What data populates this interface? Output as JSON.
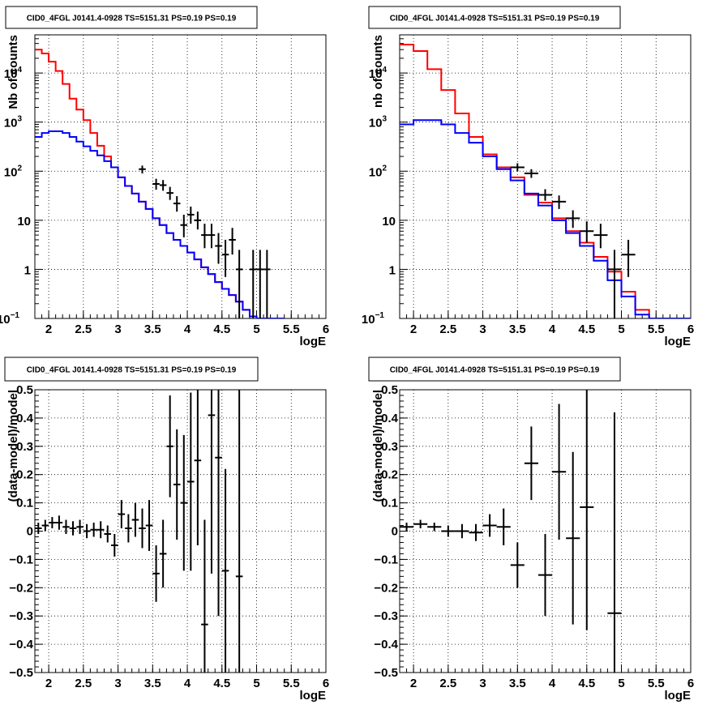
{
  "chart_data": [
    {
      "type": "line",
      "title": "CID0_4FGL J0141.4-0928 TS=5151.31 PS=0.19 PS=0.19",
      "xlabel": "logE",
      "ylabel": "Nb of counts",
      "xlim": [
        1.8,
        6.0
      ],
      "ylim": [
        0.1,
        60000
      ],
      "y_scale": "log",
      "grid": true,
      "x_ticks": [
        "2",
        "2.5",
        "3",
        "3.5",
        "4",
        "4.5",
        "5",
        "5.5",
        "6"
      ],
      "y_ticks": [
        {
          "value": 0.1,
          "base": "10",
          "exp": "−1"
        },
        {
          "value": 1,
          "base": "1",
          "exp": ""
        },
        {
          "value": 10,
          "base": "10",
          "exp": ""
        },
        {
          "value": 100,
          "base": "10",
          "exp": "2"
        },
        {
          "value": 1000,
          "base": "10",
          "exp": "3"
        },
        {
          "value": 10000,
          "base": "10",
          "exp": "4"
        }
      ],
      "bin_width": 0.1,
      "series": [
        {
          "color": "#ff0000",
          "style": "step",
          "x_start": 1.8,
          "values": [
            30000,
            25000,
            17000,
            11000,
            6000,
            3000,
            1800,
            1100,
            600,
            330,
            200,
            120,
            75,
            50,
            35,
            24,
            17,
            11,
            8,
            5.5,
            4,
            3,
            2.2,
            1.6,
            1.1,
            0.8,
            0.55,
            0.4,
            0.3,
            0.22,
            0.15,
            0.11,
            0.1,
            0.1,
            0.1,
            0.1
          ]
        },
        {
          "color": "#0000ff",
          "style": "step",
          "x_start": 1.8,
          "values": [
            500,
            600,
            650,
            650,
            600,
            500,
            400,
            320,
            260,
            210,
            160,
            120,
            75,
            50,
            35,
            24,
            17,
            11,
            8,
            5.5,
            4,
            3,
            2.2,
            1.6,
            1.1,
            0.8,
            0.55,
            0.4,
            0.3,
            0.22,
            0.15,
            0.11,
            0.1,
            0.1,
            0.1,
            0.1
          ]
        },
        {
          "color": "#000000",
          "style": "errorbar",
          "half_width": 0.05,
          "points": [
            {
              "x": 3.35,
              "y": 110,
              "lo": 90,
              "hi": 130
            },
            {
              "x": 3.55,
              "y": 55,
              "lo": 42,
              "hi": 70
            },
            {
              "x": 3.65,
              "y": 52,
              "lo": 40,
              "hi": 66
            },
            {
              "x": 3.75,
              "y": 36,
              "lo": 26,
              "hi": 48
            },
            {
              "x": 3.85,
              "y": 22,
              "lo": 15,
              "hi": 31
            },
            {
              "x": 3.95,
              "y": 8,
              "lo": 4.5,
              "hi": 13
            },
            {
              "x": 4.05,
              "y": 13,
              "lo": 8.5,
              "hi": 19
            },
            {
              "x": 4.15,
              "y": 10,
              "lo": 6.5,
              "hi": 15
            },
            {
              "x": 4.25,
              "y": 5,
              "lo": 2.7,
              "hi": 8.5
            },
            {
              "x": 4.35,
              "y": 5,
              "lo": 2.7,
              "hi": 8.5
            },
            {
              "x": 4.45,
              "y": 3,
              "lo": 1.3,
              "hi": 5.5
            },
            {
              "x": 4.55,
              "y": 2,
              "lo": 0.7,
              "hi": 4
            },
            {
              "x": 4.65,
              "y": 4,
              "lo": 2,
              "hi": 7
            },
            {
              "x": 4.75,
              "y": 1,
              "lo": 0.1,
              "hi": 2.5
            },
            {
              "x": 4.95,
              "y": 1,
              "lo": 0.1,
              "hi": 2.5
            },
            {
              "x": 5.05,
              "y": 1,
              "lo": 0.1,
              "hi": 2.5
            },
            {
              "x": 5.15,
              "y": 1,
              "lo": 0.1,
              "hi": 2.5
            }
          ]
        }
      ]
    },
    {
      "type": "line",
      "title": "CID0_4FGL J0141.4-0928 TS=5151.31 PS=0.19 PS=0.19",
      "xlabel": "logE",
      "ylabel": "nb of counts",
      "xlim": [
        1.8,
        6.0
      ],
      "ylim": [
        0.1,
        60000
      ],
      "y_scale": "log",
      "grid": true,
      "x_ticks": [
        "2",
        "2.5",
        "3",
        "3.5",
        "4",
        "4.5",
        "5",
        "5.5",
        "6"
      ],
      "y_ticks": [
        {
          "value": 0.1,
          "base": "10",
          "exp": "−1"
        },
        {
          "value": 1,
          "base": "1",
          "exp": ""
        },
        {
          "value": 10,
          "base": "10",
          "exp": ""
        },
        {
          "value": 100,
          "base": "10",
          "exp": "2"
        },
        {
          "value": 1000,
          "base": "10",
          "exp": "3"
        },
        {
          "value": 10000,
          "base": "10",
          "exp": "4"
        }
      ],
      "bin_width": 0.2,
      "series": [
        {
          "color": "#ff0000",
          "style": "step",
          "x_start": 1.8,
          "values": [
            38000,
            28000,
            12000,
            4500,
            1500,
            500,
            220,
            120,
            75,
            33,
            23,
            11,
            6,
            3.5,
            1.8,
            0.9,
            0.35,
            0.15,
            0.1,
            0.1,
            0.1
          ]
        },
        {
          "color": "#0000ff",
          "style": "step",
          "x_start": 1.8,
          "values": [
            900,
            1100,
            1100,
            900,
            600,
            380,
            200,
            110,
            65,
            35,
            20,
            10,
            5.5,
            3,
            1.5,
            0.6,
            0.28,
            0.12,
            0.1,
            0.1,
            0.1
          ]
        },
        {
          "color": "#000000",
          "style": "errorbar",
          "half_width": 0.1,
          "points": [
            {
              "x": 3.5,
              "y": 120,
              "lo": 100,
              "hi": 145
            },
            {
              "x": 3.7,
              "y": 90,
              "lo": 73,
              "hi": 110
            },
            {
              "x": 3.9,
              "y": 33,
              "lo": 25,
              "hi": 43
            },
            {
              "x": 4.1,
              "y": 24,
              "lo": 17,
              "hi": 32
            },
            {
              "x": 4.3,
              "y": 11,
              "lo": 7,
              "hi": 16
            },
            {
              "x": 4.5,
              "y": 6,
              "lo": 3.5,
              "hi": 9.5
            },
            {
              "x": 4.7,
              "y": 5,
              "lo": 2.7,
              "hi": 8.5
            },
            {
              "x": 4.9,
              "y": 1,
              "lo": 0.1,
              "hi": 2.5
            },
            {
              "x": 5.1,
              "y": 2,
              "lo": 0.7,
              "hi": 4
            }
          ]
        }
      ]
    },
    {
      "type": "scatter",
      "title": "CID0_4FGL J0141.4-0928 TS=5151.31 PS=0.19 PS=0.19",
      "xlabel": "logE",
      "ylabel": "(data-model)/model",
      "xlim": [
        1.8,
        6.0
      ],
      "ylim": [
        -0.5,
        0.5
      ],
      "grid": true,
      "x_ticks": [
        "2",
        "2.5",
        "3",
        "3.5",
        "4",
        "4.5",
        "5",
        "5.5",
        "6"
      ],
      "y_ticks": [
        "−0.5",
        "−0.4",
        "−0.3",
        "−0.2",
        "−0.1",
        "0",
        "0.1",
        "0.2",
        "0.3",
        "0.4",
        "0.5"
      ],
      "series": [
        {
          "color": "#000000",
          "style": "errorbar",
          "half_width": 0.05,
          "points": [
            {
              "x": 1.85,
              "y": 0.01,
              "lo": -0.01,
              "hi": 0.03
            },
            {
              "x": 1.95,
              "y": 0.02,
              "lo": 0.0,
              "hi": 0.04
            },
            {
              "x": 2.05,
              "y": 0.03,
              "lo": 0.01,
              "hi": 0.05
            },
            {
              "x": 2.15,
              "y": 0.03,
              "lo": 0.005,
              "hi": 0.055
            },
            {
              "x": 2.25,
              "y": 0.015,
              "lo": -0.01,
              "hi": 0.04
            },
            {
              "x": 2.35,
              "y": 0.01,
              "lo": -0.015,
              "hi": 0.035
            },
            {
              "x": 2.45,
              "y": 0.015,
              "lo": -0.01,
              "hi": 0.04
            },
            {
              "x": 2.55,
              "y": 0.0,
              "lo": -0.025,
              "hi": 0.025
            },
            {
              "x": 2.65,
              "y": 0.005,
              "lo": -0.02,
              "hi": 0.03
            },
            {
              "x": 2.75,
              "y": 0.005,
              "lo": -0.025,
              "hi": 0.035
            },
            {
              "x": 2.85,
              "y": -0.01,
              "lo": -0.04,
              "hi": 0.02
            },
            {
              "x": 2.95,
              "y": -0.05,
              "lo": -0.09,
              "hi": -0.01
            },
            {
              "x": 3.05,
              "y": 0.06,
              "lo": 0.01,
              "hi": 0.11
            },
            {
              "x": 3.15,
              "y": 0.01,
              "lo": -0.04,
              "hi": 0.06
            },
            {
              "x": 3.25,
              "y": 0.04,
              "lo": -0.02,
              "hi": 0.1
            },
            {
              "x": 3.35,
              "y": 0.01,
              "lo": -0.06,
              "hi": 0.08
            },
            {
              "x": 3.45,
              "y": 0.02,
              "lo": -0.07,
              "hi": 0.11
            },
            {
              "x": 3.55,
              "y": -0.15,
              "lo": -0.25,
              "hi": -0.05
            },
            {
              "x": 3.65,
              "y": -0.08,
              "lo": -0.2,
              "hi": 0.04
            },
            {
              "x": 3.75,
              "y": 0.3,
              "lo": 0.12,
              "hi": 0.48
            },
            {
              "x": 3.85,
              "y": 0.165,
              "lo": -0.03,
              "hi": 0.36
            },
            {
              "x": 3.95,
              "y": 0.1,
              "lo": -0.14,
              "hi": 0.34
            },
            {
              "x": 4.05,
              "y": 0.175,
              "lo": -0.14,
              "hi": 0.49
            },
            {
              "x": 4.15,
              "y": 0.25,
              "lo": -0.05,
              "hi": 0.55
            },
            {
              "x": 4.25,
              "y": -0.33,
              "lo": -0.7,
              "hi": 0.04
            },
            {
              "x": 4.35,
              "y": 0.41,
              "lo": -0.15,
              "hi": 0.97
            },
            {
              "x": 4.45,
              "y": 0.26,
              "lo": -0.3,
              "hi": 0.82
            },
            {
              "x": 4.55,
              "y": -0.14,
              "lo": -0.5,
              "hi": 0.22
            },
            {
              "x": 4.75,
              "y": -0.16,
              "lo": -0.6,
              "hi": 0.6
            }
          ]
        }
      ]
    },
    {
      "type": "scatter",
      "title": "CID0_4FGL J0141.4-0928 TS=5151.31 PS=0.19 PS=0.19",
      "xlabel": "logE",
      "ylabel": "(data-model)/model",
      "xlim": [
        1.8,
        6.0
      ],
      "ylim": [
        -0.5,
        0.5
      ],
      "grid": true,
      "x_ticks": [
        "2",
        "2.5",
        "3",
        "3.5",
        "4",
        "4.5",
        "5",
        "5.5",
        "6"
      ],
      "y_ticks": [
        "−0.5",
        "−0.4",
        "−0.3",
        "−0.2",
        "−0.1",
        "0",
        "0.1",
        "0.2",
        "0.3",
        "0.4",
        "0.5"
      ],
      "series": [
        {
          "color": "#000000",
          "style": "errorbar",
          "half_width": 0.1,
          "points": [
            {
              "x": 1.9,
              "y": 0.015,
              "lo": 0.0,
              "hi": 0.03
            },
            {
              "x": 2.1,
              "y": 0.025,
              "lo": 0.01,
              "hi": 0.04
            },
            {
              "x": 2.3,
              "y": 0.015,
              "lo": 0.0,
              "hi": 0.03
            },
            {
              "x": 2.5,
              "y": 0.0,
              "lo": -0.02,
              "hi": 0.02
            },
            {
              "x": 2.7,
              "y": 0.0,
              "lo": -0.025,
              "hi": 0.025
            },
            {
              "x": 2.9,
              "y": -0.005,
              "lo": -0.035,
              "hi": 0.025
            },
            {
              "x": 3.1,
              "y": 0.02,
              "lo": -0.02,
              "hi": 0.06
            },
            {
              "x": 3.3,
              "y": 0.015,
              "lo": -0.05,
              "hi": 0.08
            },
            {
              "x": 3.5,
              "y": -0.12,
              "lo": -0.2,
              "hi": -0.04
            },
            {
              "x": 3.7,
              "y": 0.24,
              "lo": 0.11,
              "hi": 0.37
            },
            {
              "x": 3.9,
              "y": -0.155,
              "lo": -0.3,
              "hi": -0.01
            },
            {
              "x": 4.1,
              "y": 0.21,
              "lo": -0.03,
              "hi": 0.45
            },
            {
              "x": 4.3,
              "y": -0.025,
              "lo": -0.33,
              "hi": 0.28
            },
            {
              "x": 4.5,
              "y": 0.085,
              "lo": -0.35,
              "hi": 0.52
            },
            {
              "x": 4.9,
              "y": -0.29,
              "lo": -1.0,
              "hi": 0.42
            }
          ]
        }
      ]
    }
  ]
}
